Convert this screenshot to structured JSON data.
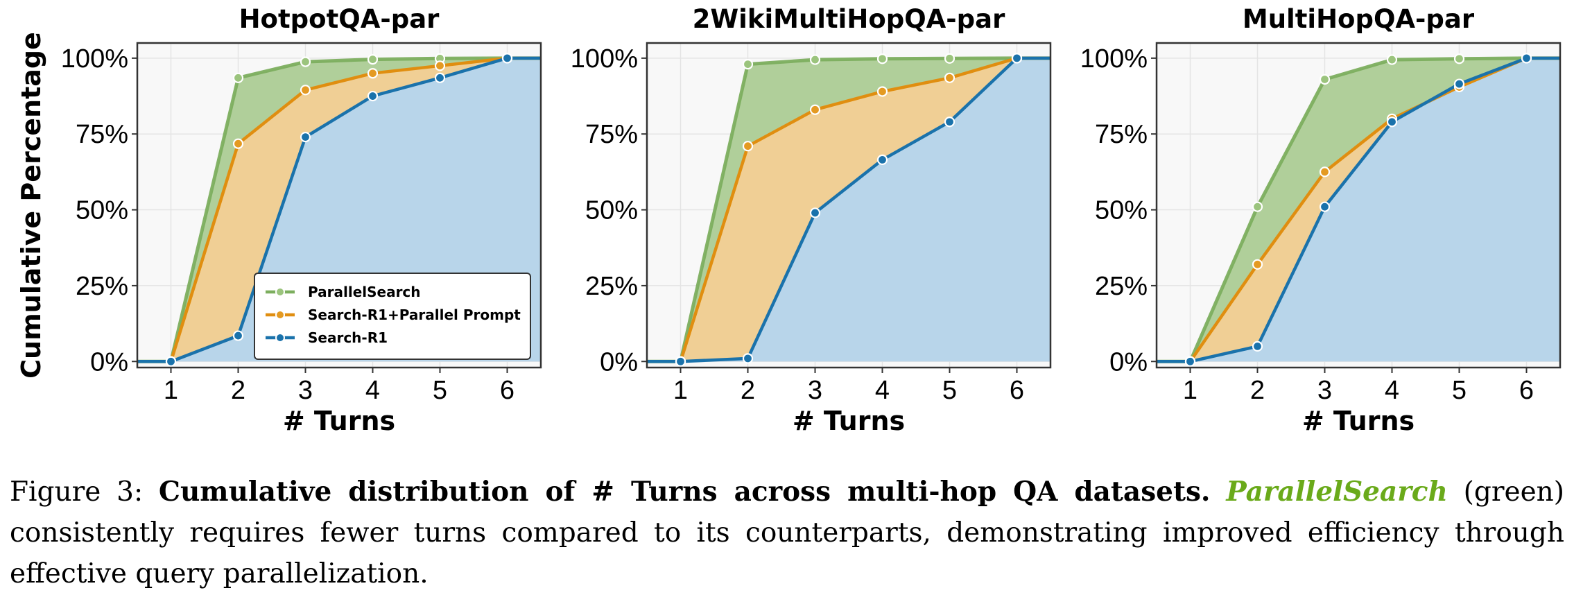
{
  "colors": {
    "ParallelSearch": "#7cae5e",
    "ParallelSearchFill": "#b0cf9a",
    "Prompt": "#e08e10",
    "PromptFill": "#f0cf95",
    "SearchR1": "#1a72ab",
    "SearchR1Fill": "#b8d5ea",
    "background": "#f8f8f8"
  },
  "shared": {
    "ylabel": "Cumulative Percentage",
    "xlabel": "# Turns",
    "x_ticks": [
      "1",
      "2",
      "3",
      "4",
      "5",
      "6"
    ],
    "y_ticks": [
      "0%",
      "25%",
      "50%",
      "75%",
      "100%"
    ],
    "legend": [
      "ParallelSearch",
      "Search-R1+Parallel Prompt",
      "Search-R1"
    ]
  },
  "chart_data": [
    {
      "type": "area",
      "title": "HotpotQA-par",
      "xlabel": "# Turns",
      "ylabel": "Cumulative Percentage",
      "x": [
        1,
        2,
        3,
        4,
        5,
        6
      ],
      "xlim": [
        0.5,
        6.5
      ],
      "ylim": [
        -2,
        105
      ],
      "legend_position": "lower-right",
      "grid": true,
      "series": [
        {
          "name": "ParallelSearch",
          "values": [
            0,
            93.5,
            98.8,
            99.6,
            99.9,
            100
          ]
        },
        {
          "name": "Search-R1+Parallel Prompt",
          "values": [
            0,
            71.8,
            89.5,
            95,
            97.5,
            100
          ]
        },
        {
          "name": "Search-R1",
          "values": [
            0,
            8.5,
            74,
            87.5,
            93.5,
            100
          ]
        }
      ]
    },
    {
      "type": "area",
      "title": "2WikiMultiHopQA-par",
      "xlabel": "# Turns",
      "x": [
        1,
        2,
        3,
        4,
        5,
        6
      ],
      "xlim": [
        0.5,
        6.5
      ],
      "ylim": [
        -2,
        105
      ],
      "grid": true,
      "series": [
        {
          "name": "ParallelSearch",
          "values": [
            0,
            98,
            99.5,
            99.8,
            99.9,
            100
          ]
        },
        {
          "name": "Search-R1+Parallel Prompt",
          "values": [
            0,
            71,
            83,
            89,
            93.5,
            100
          ]
        },
        {
          "name": "Search-R1",
          "values": [
            0,
            1,
            49,
            66.5,
            79,
            100
          ]
        }
      ]
    },
    {
      "type": "area",
      "title": "MultiHopQA-par",
      "xlabel": "# Turns",
      "x": [
        1,
        2,
        3,
        4,
        5,
        6
      ],
      "xlim": [
        0.5,
        6.5
      ],
      "ylim": [
        -2,
        105
      ],
      "grid": true,
      "series": [
        {
          "name": "ParallelSearch",
          "values": [
            0,
            51,
            93,
            99.5,
            99.8,
            100
          ]
        },
        {
          "name": "Search-R1+Parallel Prompt",
          "values": [
            0,
            32,
            62.5,
            80,
            90.5,
            100
          ]
        },
        {
          "name": "Search-R1",
          "values": [
            0,
            5,
            51,
            79,
            91.5,
            100
          ]
        }
      ]
    }
  ],
  "caption": {
    "prefix": "Figure 3: ",
    "bold": "Cumulative distribution of # Turns across multi-hop QA datasets.",
    "highlight": "ParallelSearch",
    "rest": " (green) consistently requires fewer turns compared to its counterparts, demonstrating improved efficiency through effective query parallelization."
  }
}
